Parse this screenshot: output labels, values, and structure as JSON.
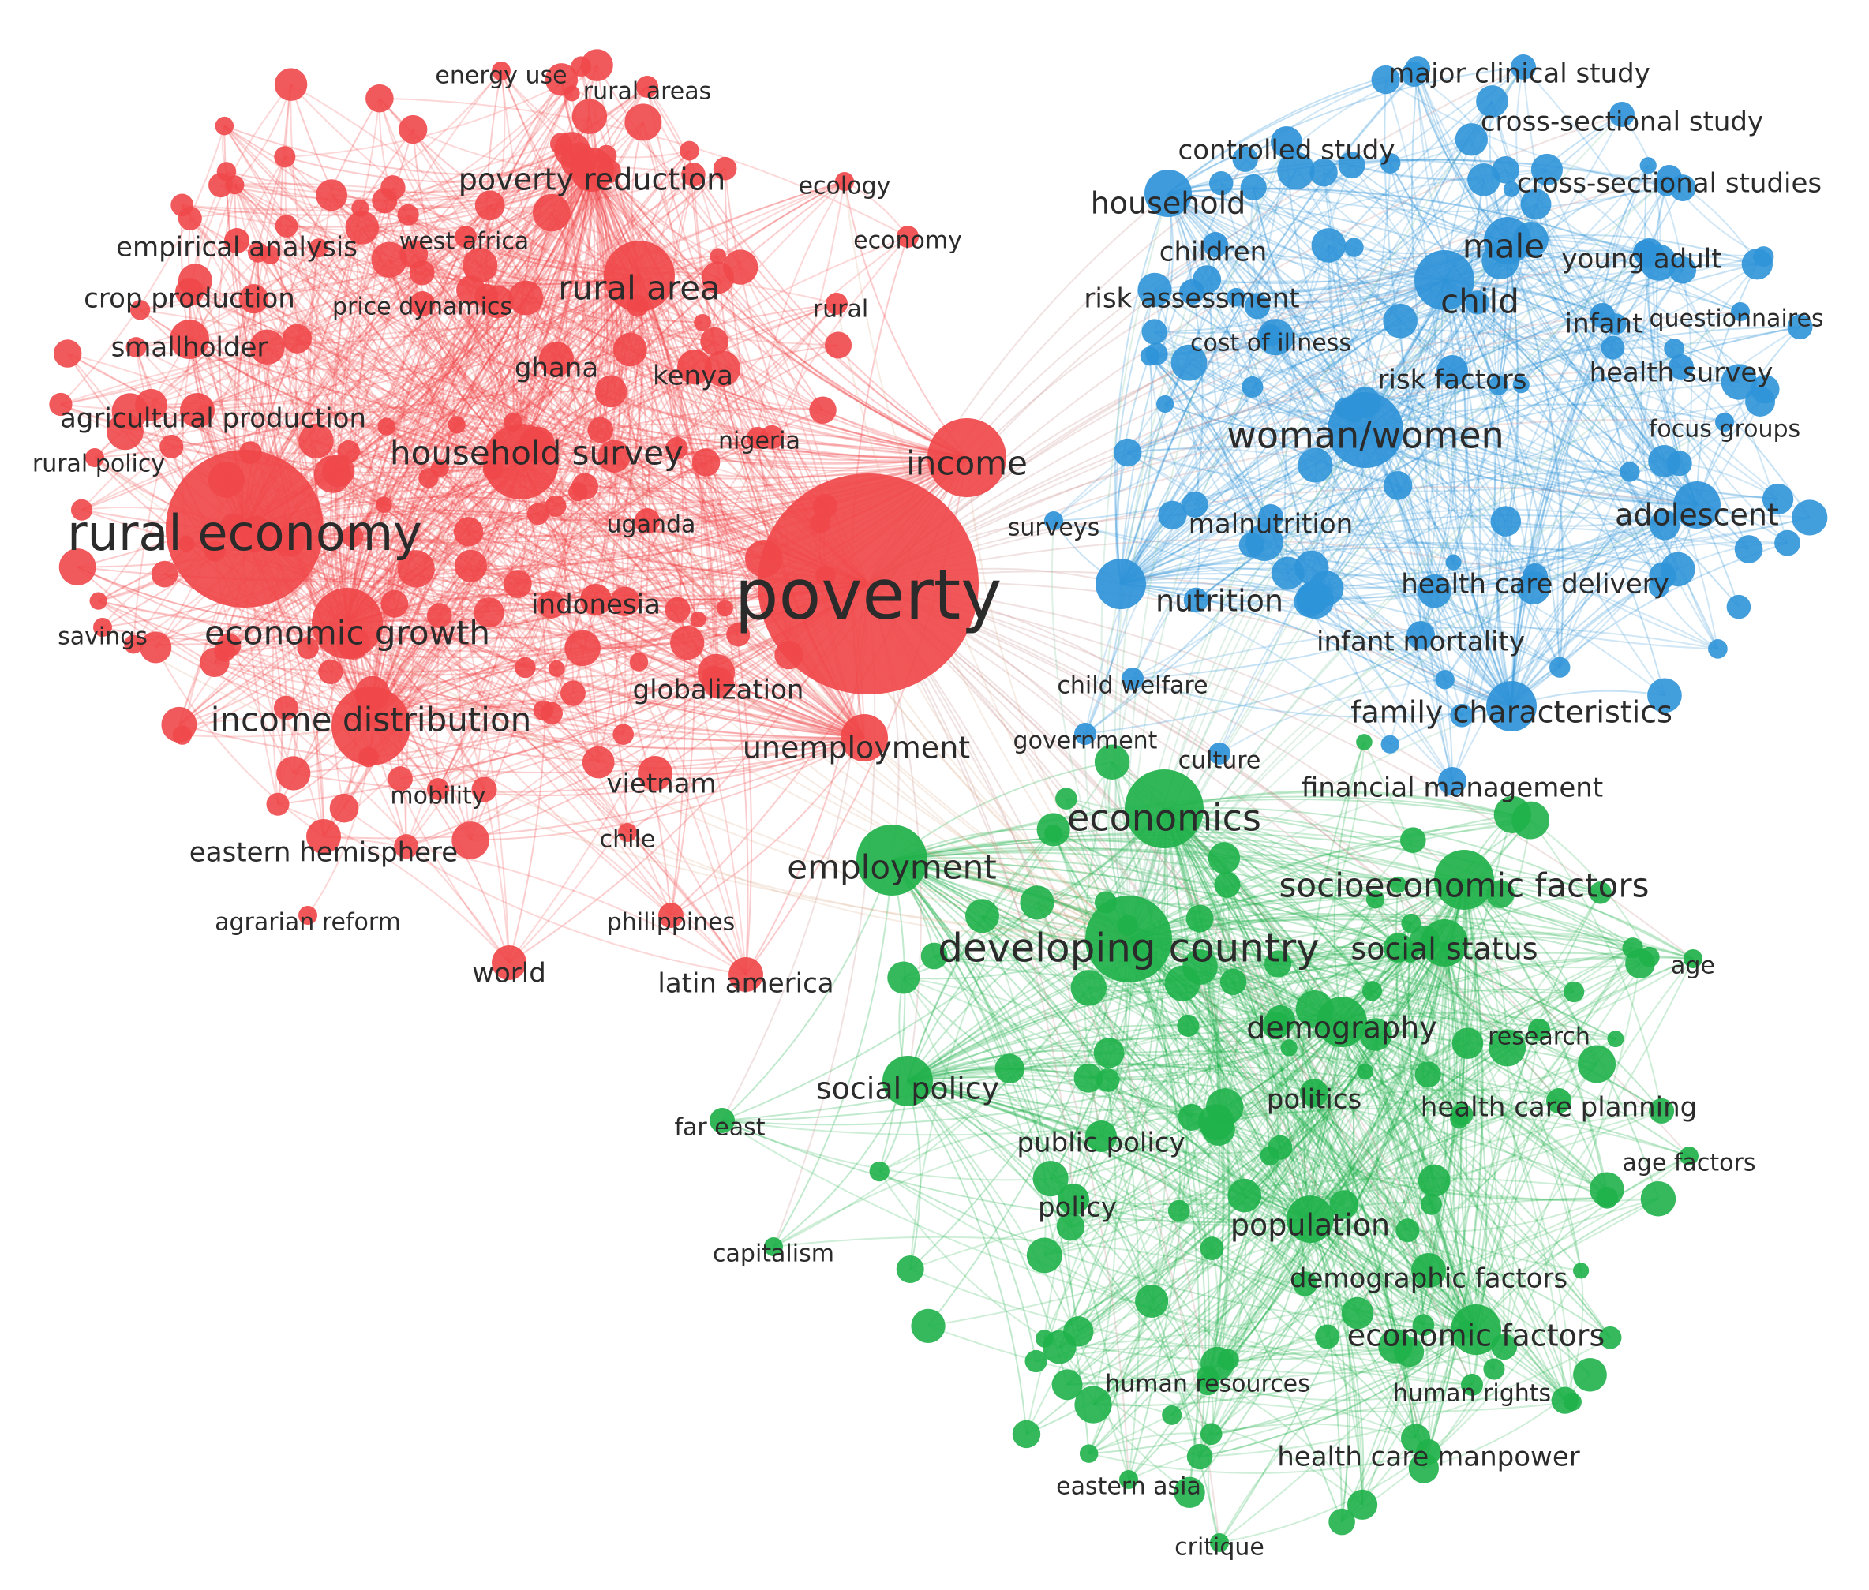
{
  "colors": {
    "cluster_red": "#f0484a",
    "cluster_blue": "#2f93d8",
    "cluster_green": "#1fb14a",
    "label": "#2b2b2b",
    "background": "#ffffff"
  },
  "clusters": [
    {
      "name": "red",
      "color": "#f0484a",
      "labeled_terms": [
        {
          "label": "poverty",
          "weight": 10
        },
        {
          "label": "rural economy",
          "weight": 7
        },
        {
          "label": "income",
          "weight": 4
        },
        {
          "label": "income distribution",
          "weight": 4
        },
        {
          "label": "household survey",
          "weight": 4
        },
        {
          "label": "economic growth",
          "weight": 4
        },
        {
          "label": "rural area",
          "weight": 4
        },
        {
          "label": "poverty reduction",
          "weight": 3
        },
        {
          "label": "unemployment",
          "weight": 3
        },
        {
          "label": "smallholder",
          "weight": 2
        },
        {
          "label": "agricultural production",
          "weight": 2
        },
        {
          "label": "crop production",
          "weight": 2
        },
        {
          "label": "empirical analysis",
          "weight": 2
        },
        {
          "label": "eastern hemisphere",
          "weight": 2
        },
        {
          "label": "kenya",
          "weight": 2
        },
        {
          "label": "ghana",
          "weight": 2
        },
        {
          "label": "world",
          "weight": 2
        },
        {
          "label": "latin america",
          "weight": 2
        },
        {
          "label": "vietnam",
          "weight": 2
        },
        {
          "label": "globalization",
          "weight": 2
        },
        {
          "label": "indonesia",
          "weight": 2
        },
        {
          "label": "uganda",
          "weight": 1
        },
        {
          "label": "nigeria",
          "weight": 1
        },
        {
          "label": "west africa",
          "weight": 1
        },
        {
          "label": "price dynamics",
          "weight": 1
        },
        {
          "label": "energy use",
          "weight": 1
        },
        {
          "label": "rural areas",
          "weight": 1
        },
        {
          "label": "ecology",
          "weight": 1
        },
        {
          "label": "economy",
          "weight": 1
        },
        {
          "label": "rural",
          "weight": 1
        },
        {
          "label": "rural policy",
          "weight": 1
        },
        {
          "label": "savings",
          "weight": 1
        },
        {
          "label": "mobility",
          "weight": 1
        },
        {
          "label": "chile",
          "weight": 1
        },
        {
          "label": "agrarian reform",
          "weight": 1
        },
        {
          "label": "philippines",
          "weight": 1
        }
      ]
    },
    {
      "name": "blue",
      "color": "#2f93d8",
      "labeled_terms": [
        {
          "label": "woman/women",
          "weight": 5
        },
        {
          "label": "child",
          "weight": 4
        },
        {
          "label": "male",
          "weight": 4
        },
        {
          "label": "household",
          "weight": 3
        },
        {
          "label": "adolescent",
          "weight": 3
        },
        {
          "label": "family characteristics",
          "weight": 3
        },
        {
          "label": "controlled study",
          "weight": 2
        },
        {
          "label": "major clinical study",
          "weight": 2
        },
        {
          "label": "cross-sectional study",
          "weight": 2
        },
        {
          "label": "cross-sectional studies",
          "weight": 2
        },
        {
          "label": "young adult",
          "weight": 2
        },
        {
          "label": "infant",
          "weight": 2
        },
        {
          "label": "questionnaires",
          "weight": 1
        },
        {
          "label": "health survey",
          "weight": 2
        },
        {
          "label": "focus groups",
          "weight": 1
        },
        {
          "label": "children",
          "weight": 2
        },
        {
          "label": "risk assessment",
          "weight": 2
        },
        {
          "label": "cost of illness",
          "weight": 1
        },
        {
          "label": "risk factors",
          "weight": 2
        },
        {
          "label": "malnutrition",
          "weight": 2
        },
        {
          "label": "surveys",
          "weight": 1
        },
        {
          "label": "nutrition",
          "weight": 3
        },
        {
          "label": "health care delivery",
          "weight": 2
        },
        {
          "label": "infant mortality",
          "weight": 2
        },
        {
          "label": "child welfare",
          "weight": 1
        },
        {
          "label": "government",
          "weight": 1
        },
        {
          "label": "culture",
          "weight": 1
        },
        {
          "label": "financial management",
          "weight": 2
        }
      ]
    },
    {
      "name": "green",
      "color": "#1fb14a",
      "labeled_terms": [
        {
          "label": "developing country",
          "weight": 6
        },
        {
          "label": "economics",
          "weight": 5
        },
        {
          "label": "employment",
          "weight": 4
        },
        {
          "label": "socioeconomic factors",
          "weight": 4
        },
        {
          "label": "social status",
          "weight": 3
        },
        {
          "label": "demography",
          "weight": 3
        },
        {
          "label": "social policy",
          "weight": 3
        },
        {
          "label": "economic factors",
          "weight": 3
        },
        {
          "label": "population",
          "weight": 3
        },
        {
          "label": "demographic factors",
          "weight": 2
        },
        {
          "label": "public policy",
          "weight": 2
        },
        {
          "label": "policy",
          "weight": 2
        },
        {
          "label": "politics",
          "weight": 2
        },
        {
          "label": "research",
          "weight": 1
        },
        {
          "label": "health care planning",
          "weight": 2
        },
        {
          "label": "age",
          "weight": 1
        },
        {
          "label": "age factors",
          "weight": 1
        },
        {
          "label": "far east",
          "weight": 1
        },
        {
          "label": "capitalism",
          "weight": 1
        },
        {
          "label": "human resources",
          "weight": 1
        },
        {
          "label": "human rights",
          "weight": 1
        },
        {
          "label": "health care manpower",
          "weight": 2
        },
        {
          "label": "eastern asia",
          "weight": 1
        },
        {
          "label": "critique",
          "weight": 1
        }
      ]
    }
  ]
}
